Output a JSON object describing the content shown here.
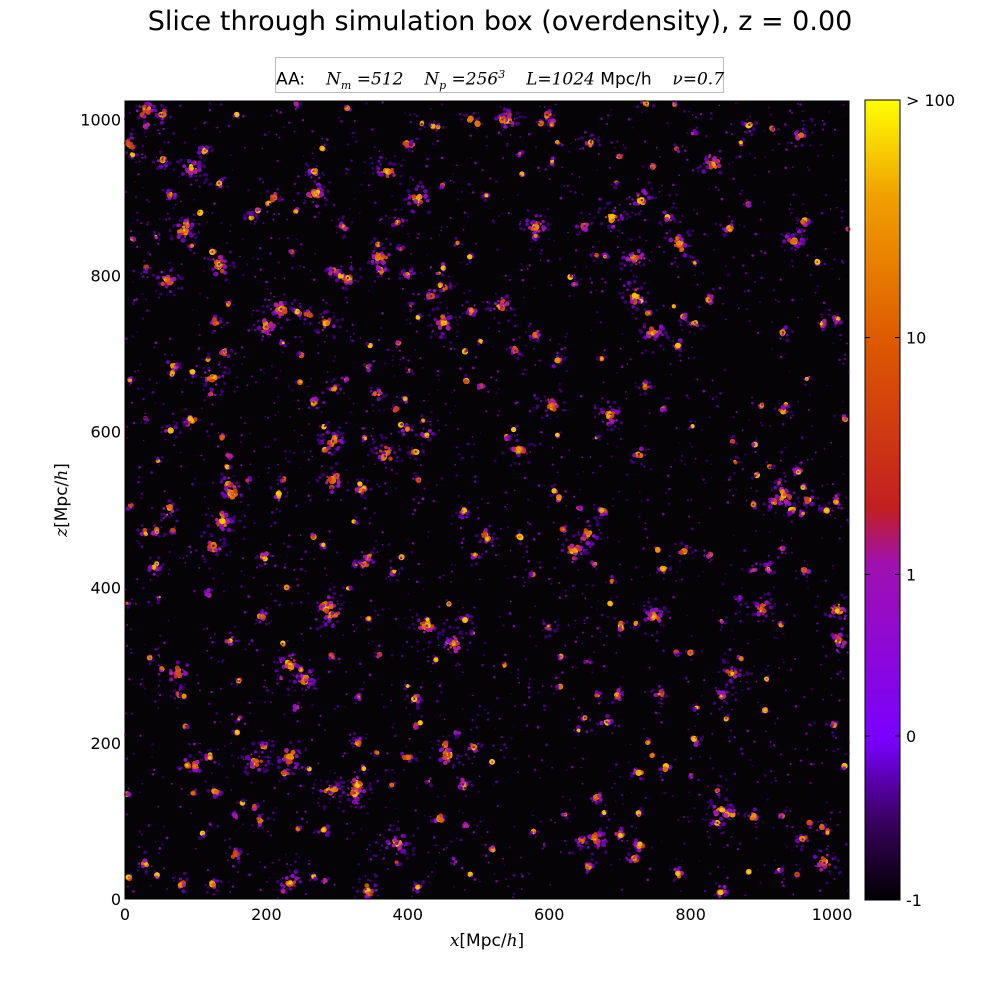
{
  "title": "Slice through simulation box (overdensity), z = 0.00",
  "info": {
    "prefix": "AA:",
    "nm_var": "N",
    "nm_sub": "m",
    "nm_val": " =512",
    "np_var": "N",
    "np_sub": "p",
    "np_val": " =256",
    "np_exp": "3",
    "l_var": "L",
    "l_val": "=1024",
    "l_unit": "Mpc/h",
    "nu_var": "ν",
    "nu_val": "=0.7"
  },
  "chart_data": {
    "type": "heatmap",
    "x_axis": {
      "var": "x",
      "unit": "[Mpc/",
      "unit_var": "h",
      "unit_close": "]",
      "range": [
        0,
        1024
      ],
      "ticks": [
        0,
        200,
        400,
        600,
        800,
        1000
      ]
    },
    "y_axis": {
      "var": "z",
      "unit": "[Mpc/",
      "unit_var": "h",
      "unit_close": "]",
      "range": [
        0,
        1024
      ],
      "ticks": [
        0,
        200,
        400,
        600,
        800,
        1000
      ]
    },
    "colorbar": {
      "tick_labels": [
        "-1",
        "0",
        "1",
        "10",
        "> 100"
      ],
      "colors": [
        "#000000",
        "#3a0060",
        "#7a00ff",
        "#a010b0",
        "#c21f20",
        "#dd5a00",
        "#f0a000",
        "#ffff00"
      ]
    },
    "colormap": "gnuplot",
    "grid": false
  }
}
